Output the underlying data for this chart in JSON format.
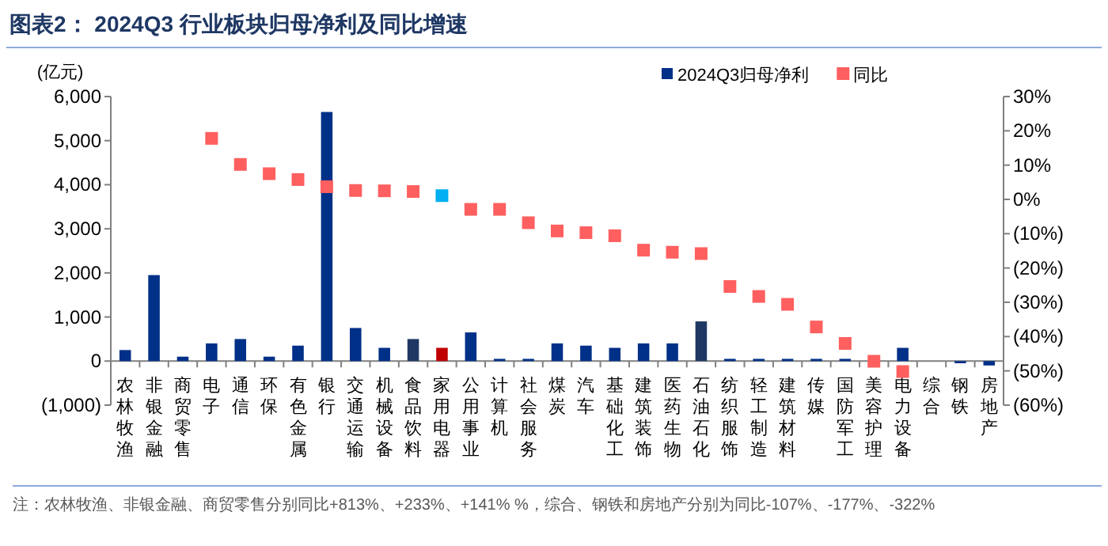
{
  "chart_data": {
    "type": "bar",
    "title": "图表2：  2024Q3 行业板块归母净利及同比增速",
    "ylabel": "(亿元)",
    "categories": [
      "农林牧渔",
      "非银金融",
      "商贸零售",
      "电子",
      "通信",
      "环保",
      "有色金属",
      "银行",
      "交通运输",
      "机械设备",
      "食品饮料",
      "家用电器",
      "公用事业",
      "计算机",
      "社会服务",
      "煤炭",
      "汽车",
      "基础化工",
      "建筑装饰",
      "医药生物",
      "石油石化",
      "纺织服饰",
      "轻工制造",
      "建筑材料",
      "传媒",
      "国防军工",
      "美容护理",
      "电力设备",
      "综合",
      "钢铁",
      "房地产"
    ],
    "series": [
      {
        "name": "2024Q3归母净利",
        "color": "#003087",
        "colors": [
          "#003087",
          "#003087",
          "#003087",
          "#003087",
          "#003087",
          "#003087",
          "#003087",
          "#003087",
          "#003087",
          "#003087",
          "#1f3864",
          "#c00000",
          "#003087",
          "#003087",
          "#003087",
          "#003087",
          "#003087",
          "#003087",
          "#003087",
          "#003087",
          "#1f3864",
          "#003087",
          "#003087",
          "#003087",
          "#003087",
          "#003087",
          "#003087",
          "#003087",
          "#003087",
          "#003087",
          "#003087"
        ],
        "values": [
          250,
          1950,
          100,
          400,
          500,
          100,
          350,
          5650,
          750,
          300,
          500,
          300,
          650,
          50,
          50,
          400,
          350,
          300,
          400,
          400,
          900,
          50,
          50,
          50,
          50,
          50,
          0,
          300,
          0,
          -50,
          -100
        ]
      },
      {
        "name": "同比",
        "type": "scatter",
        "axis": "y2",
        "color": "#ff5f5f",
        "colors": [
          "#ff5f5f",
          "#ff5f5f",
          "#ff5f5f",
          "#ff5f5f",
          "#ff5f5f",
          "#ff5f5f",
          "#ff5f5f",
          "#ff5f5f",
          "#ff5f5f",
          "#ff5f5f",
          "#ff5f5f",
          "#00b0f0",
          "#ff5f5f",
          "#ff5f5f",
          "#ff5f5f",
          "#ff5f5f",
          "#ff5f5f",
          "#ff5f5f",
          "#ff5f5f",
          "#ff5f5f",
          "#ff5f5f",
          "#ff5f5f",
          "#ff5f5f",
          "#ff5f5f",
          "#ff5f5f",
          "#ff5f5f",
          "#ff5f5f",
          "#ff5f5f",
          "#ff5f5f",
          "#ff5f5f",
          "#ff5f5f"
        ],
        "values": [
          null,
          null,
          null,
          17.8,
          10.2,
          7.5,
          5.8,
          3.7,
          2.6,
          2.5,
          2.3,
          1.1,
          -2.9,
          -2.9,
          -6.8,
          -9.2,
          -9.7,
          -10.6,
          -14.8,
          -15.4,
          -15.8,
          -25.4,
          -28.3,
          -30.6,
          -37.2,
          -42,
          -47.2,
          -50.2,
          null,
          null,
          null
        ]
      }
    ],
    "marker": "square",
    "ylim": [
      -1000,
      6000
    ],
    "yticks": [
      {
        "value": -1000,
        "label": "(1,000)"
      },
      0,
      {
        "value": 1000,
        "label": "1,000"
      },
      {
        "value": 2000,
        "label": "2,000"
      },
      {
        "value": 3000,
        "label": "3,000"
      },
      {
        "value": 4000,
        "label": "4,000"
      },
      {
        "value": 5000,
        "label": "5,000"
      },
      {
        "value": 6000,
        "label": "6,000"
      }
    ],
    "y2lim": [
      -60,
      30
    ],
    "y2ticks": [
      {
        "value": -60,
        "label": "(60%)"
      },
      {
        "value": -50,
        "label": "(50%)"
      },
      {
        "value": -40,
        "label": "(40%)"
      },
      {
        "value": -30,
        "label": "(30%)"
      },
      {
        "value": -20,
        "label": "(20%)"
      },
      {
        "value": -10,
        "label": "(10%)"
      },
      {
        "value": 0,
        "label": "0%"
      },
      {
        "value": 10,
        "label": "10%"
      },
      {
        "value": 20,
        "label": "20%"
      },
      {
        "value": 30,
        "label": "30%"
      }
    ],
    "legend": "top right",
    "grid": false,
    "annotations": [
      "注：农林牧渔、非银金融、商贸零售分别同比+813%、+233%、+141% %，综合、钢铁和房地产分别为同比-107%、-177%、-322%"
    ]
  }
}
